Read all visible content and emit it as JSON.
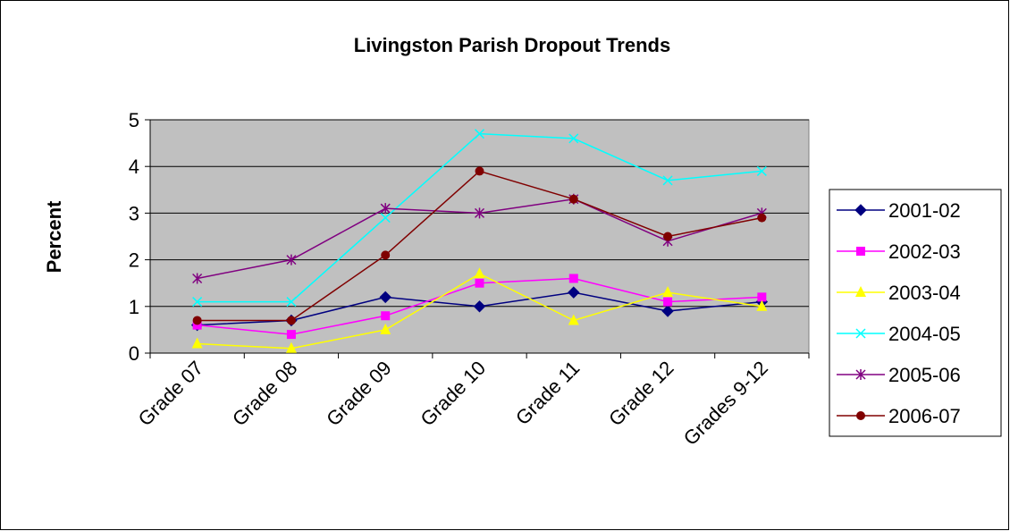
{
  "chart_data": {
    "type": "line",
    "title": "Livingston Parish Dropout Trends",
    "y_label": "Percent",
    "categories": [
      "Grade 07",
      "Grade 08",
      "Grade 09",
      "Grade 10",
      "Grade 11",
      "Grade 12",
      "Grades 9-12"
    ],
    "series": [
      {
        "name": "2001-02",
        "color": "#000080",
        "marker": "diamond",
        "values": [
          0.6,
          0.7,
          1.2,
          1.0,
          1.3,
          0.9,
          1.1
        ]
      },
      {
        "name": "2002-03",
        "color": "#ff00ff",
        "marker": "square",
        "values": [
          0.6,
          0.4,
          0.8,
          1.5,
          1.6,
          1.1,
          1.2
        ]
      },
      {
        "name": "2003-04",
        "color": "#ffff00",
        "marker": "triangle",
        "values": [
          0.2,
          0.1,
          0.5,
          1.7,
          0.7,
          1.3,
          1.0
        ]
      },
      {
        "name": "2004-05",
        "color": "#00ffff",
        "marker": "x",
        "values": [
          1.1,
          1.1,
          2.9,
          4.7,
          4.6,
          3.7,
          3.9
        ]
      },
      {
        "name": "2005-06",
        "color": "#800080",
        "marker": "star",
        "values": [
          1.6,
          2.0,
          3.1,
          3.0,
          3.3,
          2.4,
          3.0
        ]
      },
      {
        "name": "2006-07",
        "color": "#800000",
        "marker": "circle",
        "values": [
          0.7,
          0.7,
          2.1,
          3.9,
          3.3,
          2.5,
          2.9
        ]
      }
    ],
    "ylim": [
      0,
      5
    ],
    "yticks": [
      0,
      1,
      2,
      3,
      4,
      5
    ],
    "grid": true,
    "legend": "right",
    "plot_background": "#c0c0c0"
  }
}
